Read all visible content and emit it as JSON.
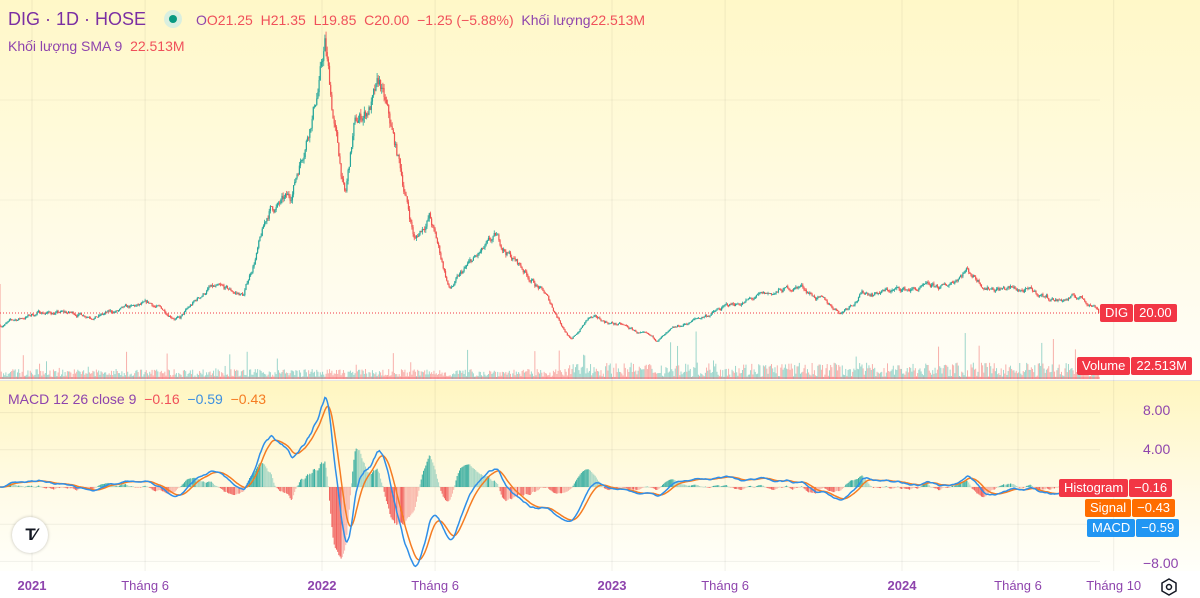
{
  "header": {
    "symbol": "DIG · 1D · HOSE",
    "open": "O21.25",
    "high": "H21.35",
    "low": "L19.85",
    "close": "C20.00",
    "change": "−1.25 (−5.88%)",
    "volume_label": "Khối lượng",
    "volume_value": "22.513M"
  },
  "volume_sma": {
    "label": "Khối lượng SMA 9",
    "value": "22.513M"
  },
  "macd_legend": {
    "label": "MACD 12 26 close 9",
    "histogram": "−0.16",
    "macd": "−0.59",
    "signal": "−0.43"
  },
  "tags": {
    "price": {
      "name": "DIG",
      "value": "20.00"
    },
    "volume": {
      "name": "Volume",
      "value": "22.513M"
    },
    "histogram": {
      "name": "Histogram",
      "value": "−0.16"
    },
    "signal": {
      "name": "Signal",
      "value": "−0.43"
    },
    "macd": {
      "name": "MACD",
      "value": "−0.59"
    }
  },
  "macd_axis": [
    "8.00",
    "4.00",
    "−8.00"
  ],
  "time_axis": [
    {
      "label": "2021",
      "t": 2021.0,
      "bold": true
    },
    {
      "label": "Tháng 6",
      "t": 2021.39,
      "bold": false
    },
    {
      "label": "2022",
      "t": 2022.0,
      "bold": true
    },
    {
      "label": "Tháng 6",
      "t": 2022.39,
      "bold": false
    },
    {
      "label": "2023",
      "t": 2023.0,
      "bold": true
    },
    {
      "label": "Tháng 6",
      "t": 2023.39,
      "bold": false
    },
    {
      "label": "2024",
      "t": 2024.0,
      "bold": true
    },
    {
      "label": "Tháng 6",
      "t": 2024.4,
      "bold": false
    },
    {
      "label": "Tháng 10",
      "t": 2024.73,
      "bold": false
    }
  ],
  "logo": "TV",
  "colors": {
    "up": "#26a69a",
    "down": "#ef5350",
    "macd": "#2f8fe8",
    "signal": "#f57c22",
    "tag_red": "#f23645",
    "tag_orange": "#ff6d00",
    "tag_blue": "#2196f3"
  },
  "chart_data": {
    "type": "candlestick",
    "title": "DIG · 1D · HOSE",
    "price_path_keypoints": {
      "t": [
        2020.89,
        2021.03,
        2021.23,
        2021.41,
        2021.51,
        2021.61,
        2021.73,
        2021.82,
        2021.89,
        2021.94,
        2021.99,
        2022.01,
        2022.04,
        2022.08,
        2022.11,
        2022.2,
        2022.27,
        2022.32,
        2022.37,
        2022.44,
        2022.51,
        2022.6,
        2022.68,
        2022.77,
        2022.86,
        2022.92,
        2023.03,
        2023.15,
        2023.27,
        2023.41,
        2023.54,
        2023.65,
        2023.72,
        2023.79,
        2023.86,
        2023.99,
        2024.15,
        2024.22,
        2024.29,
        2024.41,
        2024.54,
        2024.61,
        2024.68
      ],
      "price": [
        16.5,
        20.3,
        19.4,
        22.3,
        18.5,
        27.3,
        25.2,
        50,
        52.8,
        70,
        87.7,
        98,
        76,
        53,
        73,
        85,
        61.6,
        41,
        48.5,
        26.7,
        34,
        41,
        34,
        25.2,
        12,
        18.5,
        16.5,
        12,
        17.4,
        22.3,
        25.2,
        28,
        23.8,
        20.3,
        25.8,
        26.7,
        27.3,
        33,
        28,
        26.7,
        23.8,
        24.6,
        21.5
      ]
    },
    "last": {
      "open": 21.25,
      "high": 21.35,
      "low": 19.85,
      "close": 20.0,
      "volume": "22.513M"
    },
    "indicators": [
      "Volume",
      "Volume SMA 9",
      "MACD 12 26 close 9"
    ],
    "macd_range": [
      -8,
      10
    ]
  }
}
